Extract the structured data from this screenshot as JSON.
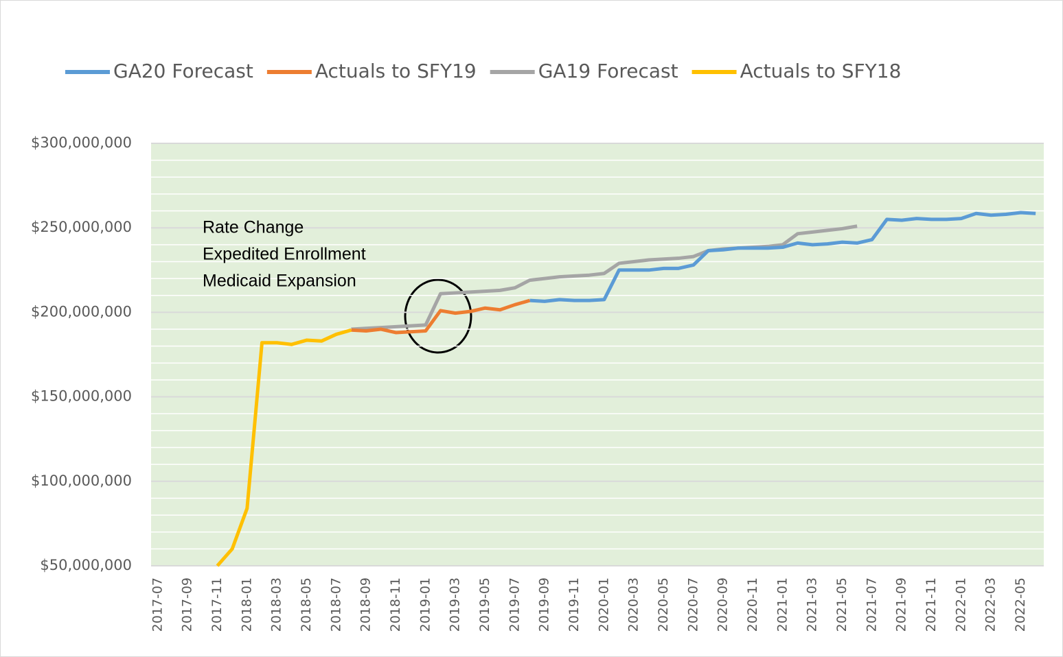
{
  "chart_data": {
    "type": "line",
    "categories": [
      "2017-07",
      null,
      "2017-09",
      null,
      "2017-11",
      null,
      "2018-01",
      null,
      "2018-03",
      null,
      "2018-05",
      null,
      "2018-07",
      null,
      "2018-09",
      null,
      "2018-11",
      null,
      "2019-01",
      null,
      "2019-03",
      null,
      "2019-05",
      null,
      "2019-07",
      null,
      "2019-09",
      null,
      "2019-11",
      null,
      "2020-01",
      null,
      "2020-03",
      null,
      "2020-05",
      null,
      "2020-07",
      null,
      "2020-09",
      null,
      "2020-11",
      null,
      "2021-01",
      null,
      "2021-03",
      null,
      "2021-05",
      null,
      "2021-07",
      null,
      "2021-09",
      null,
      "2021-11",
      null,
      "2022-01",
      null,
      "2022-03",
      null,
      "2022-05",
      null
    ],
    "series": [
      {
        "name": "GA20 Forecast",
        "color": "#5b9bd5",
        "values": [
          null,
          null,
          null,
          null,
          null,
          null,
          null,
          null,
          null,
          null,
          null,
          null,
          null,
          null,
          null,
          null,
          null,
          null,
          null,
          null,
          null,
          null,
          null,
          null,
          null,
          207000000,
          206500000,
          207500000,
          207000000,
          207000000,
          207500000,
          225000000,
          225000000,
          225000000,
          226000000,
          226000000,
          228000000,
          236500000,
          237000000,
          238000000,
          238000000,
          238000000,
          238500000,
          241000000,
          240000000,
          240500000,
          241500000,
          241000000,
          243000000,
          255000000,
          254500000,
          255500000,
          255000000,
          255000000,
          255500000,
          258500000,
          257500000,
          258000000,
          259000000,
          258500000
        ]
      },
      {
        "name": "Actuals to SFY19",
        "color": "#ed7d31",
        "values": [
          null,
          null,
          null,
          null,
          null,
          null,
          null,
          null,
          null,
          null,
          null,
          null,
          null,
          189500000,
          189000000,
          190000000,
          188000000,
          188500000,
          189000000,
          201000000,
          199500000,
          200500000,
          202500000,
          201500000,
          204500000,
          207000000,
          null,
          null,
          null,
          null,
          null,
          null,
          null,
          null,
          null,
          null,
          null,
          null,
          null,
          null,
          null,
          null,
          null,
          null,
          null,
          null,
          null,
          null,
          null,
          null,
          null,
          null,
          null,
          null,
          null,
          null,
          null,
          null,
          null,
          null
        ]
      },
      {
        "name": "GA19 Forecast",
        "color": "#a5a5a5",
        "values": [
          null,
          null,
          null,
          null,
          null,
          null,
          null,
          null,
          null,
          null,
          null,
          null,
          null,
          190000000,
          190500000,
          191000000,
          191500000,
          192000000,
          192500000,
          211000000,
          211500000,
          212000000,
          212500000,
          213000000,
          214500000,
          219000000,
          220000000,
          221000000,
          221500000,
          222000000,
          223000000,
          229000000,
          230000000,
          231000000,
          231500000,
          232000000,
          233000000,
          236500000,
          237500000,
          238000000,
          238500000,
          239000000,
          240000000,
          246500000,
          247500000,
          248500000,
          249500000,
          251000000,
          null,
          null,
          null,
          null,
          null,
          null,
          null,
          null,
          null,
          null,
          null,
          null
        ]
      },
      {
        "name": "Actuals to SFY18",
        "color": "#ffc000",
        "values": [
          null,
          null,
          null,
          null,
          50000000,
          60000000,
          84000000,
          182000000,
          182000000,
          181000000,
          183500000,
          183000000,
          187000000,
          189500000,
          null,
          null,
          null,
          null,
          null,
          null,
          null,
          null,
          null,
          null,
          null,
          null,
          null,
          null,
          null,
          null,
          null,
          null,
          null,
          null,
          null,
          null,
          null,
          null,
          null,
          null,
          null,
          null,
          null,
          null,
          null,
          null,
          null,
          null,
          null,
          null,
          null,
          null,
          null,
          null,
          null,
          null,
          null,
          null,
          null,
          null
        ]
      }
    ],
    "ylim": [
      50000000,
      300000000
    ],
    "yticks": [
      {
        "value": 50000000,
        "label": "$50,000,000"
      },
      {
        "value": 100000000,
        "label": "$100,000,000"
      },
      {
        "value": 150000000,
        "label": "$150,000,000"
      },
      {
        "value": 200000000,
        "label": "$200,000,000"
      },
      {
        "value": 250000000,
        "label": "$250,000,000"
      },
      {
        "value": 300000000,
        "label": "$300,000,000"
      }
    ],
    "yticks_minor": [
      60000000,
      70000000,
      80000000,
      90000000,
      110000000,
      120000000,
      130000000,
      140000000,
      160000000,
      170000000,
      180000000,
      190000000,
      210000000,
      220000000,
      230000000,
      240000000,
      260000000,
      270000000,
      280000000,
      290000000
    ],
    "grid": true,
    "legend": "top",
    "annotation": [
      "Rate Change",
      "Expedited Enrollment",
      "Medicaid Expansion"
    ]
  }
}
